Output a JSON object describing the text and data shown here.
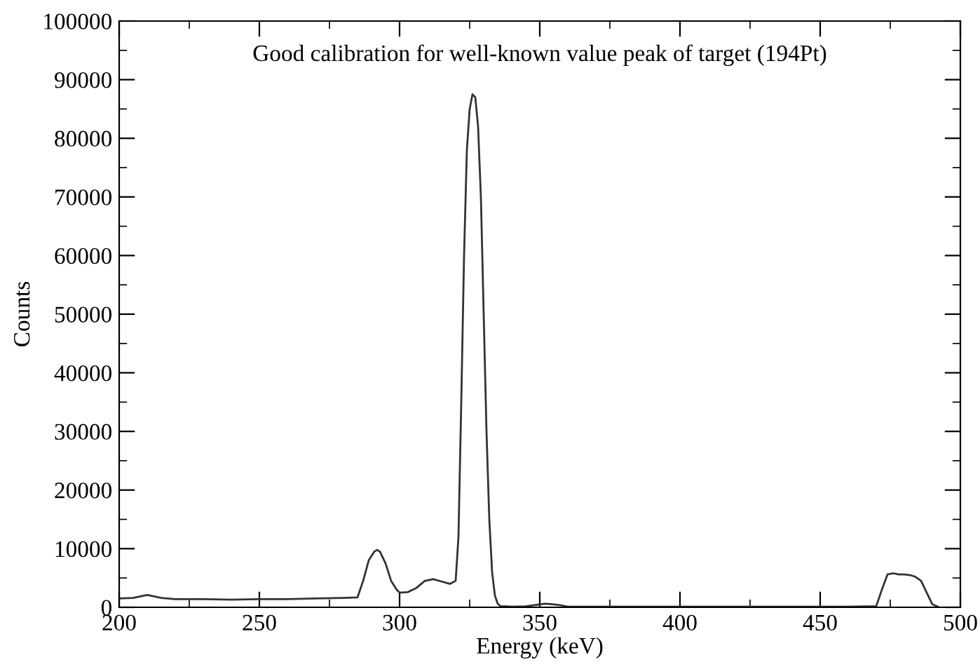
{
  "chart_data": {
    "type": "line",
    "title": "Good calibration for well-known value peak of target (194Pt)",
    "xlabel": "Energy (keV)",
    "ylabel": "Counts",
    "xlim": [
      200,
      500
    ],
    "ylim": [
      0,
      100000
    ],
    "xticks": [
      200,
      250,
      300,
      350,
      400,
      450,
      500
    ],
    "yticks": [
      0,
      10000,
      20000,
      30000,
      40000,
      50000,
      60000,
      70000,
      80000,
      90000,
      100000
    ],
    "grid": false,
    "legend": false,
    "marker": "none",
    "line_style": "solid",
    "series": [
      {
        "color": "#333333",
        "x": [
          200,
          205,
          210,
          215,
          220,
          230,
          240,
          250,
          260,
          270,
          280,
          285,
          287,
          289,
          291,
          292,
          293,
          295,
          297,
          299,
          300,
          303,
          306,
          309,
          312,
          315,
          318,
          320,
          321,
          322,
          323,
          324,
          325,
          326,
          327,
          328,
          329,
          330,
          331,
          332,
          333,
          334,
          335,
          336,
          338,
          340,
          345,
          350,
          352,
          355,
          358,
          360,
          380,
          400,
          420,
          440,
          460,
          470,
          472,
          474,
          476,
          478,
          480,
          482,
          484,
          486,
          488,
          490,
          492
        ],
        "values": [
          1500,
          1600,
          2100,
          1600,
          1400,
          1400,
          1300,
          1400,
          1400,
          1500,
          1600,
          1700,
          4500,
          8000,
          9500,
          9800,
          9500,
          7500,
          4500,
          3000,
          2500,
          2600,
          3300,
          4500,
          4800,
          4400,
          4000,
          4500,
          12000,
          35000,
          60000,
          78000,
          85000,
          87500,
          87000,
          82000,
          70000,
          50000,
          30000,
          15000,
          6000,
          2000,
          600,
          200,
          150,
          100,
          150,
          500,
          600,
          500,
          300,
          100,
          100,
          100,
          100,
          100,
          100,
          200,
          3000,
          5600,
          5800,
          5600,
          5600,
          5500,
          5200,
          4500,
          2500,
          500,
          100
        ]
      }
    ]
  }
}
